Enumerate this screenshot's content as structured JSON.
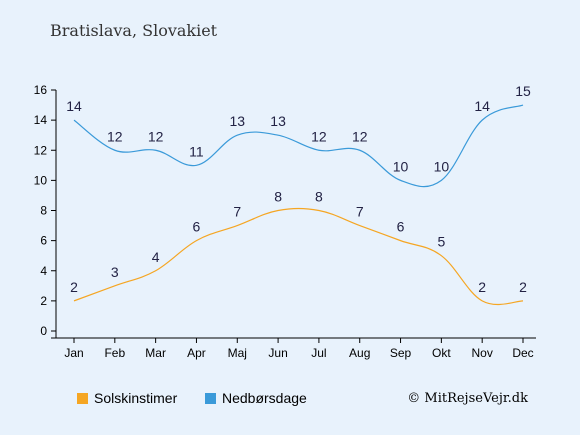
{
  "title": "Bratislava, Slovakiet",
  "copyright": "© MitRejseVejr.dk",
  "colors": {
    "background": "#e8f2fc",
    "sun": "#f5a623",
    "rain": "#3a9ad9"
  },
  "chart_data": {
    "type": "line",
    "categories": [
      "Jan",
      "Feb",
      "Mar",
      "Apr",
      "Maj",
      "Jun",
      "Jul",
      "Aug",
      "Sep",
      "Okt",
      "Nov",
      "Dec"
    ],
    "ylim": [
      0,
      16
    ],
    "yticks": [
      "0",
      "2",
      "4",
      "6",
      "8",
      "10",
      "12",
      "14",
      "16"
    ],
    "grid": false,
    "legend_position": "bottom-left",
    "series": [
      {
        "name": "Solskinstimer",
        "color": "#f5a623",
        "values": [
          2,
          3,
          4,
          6,
          7,
          8,
          8,
          7,
          6,
          5,
          2,
          2
        ]
      },
      {
        "name": "Nedbørsdage",
        "color": "#3a9ad9",
        "values": [
          14,
          12,
          12,
          11,
          13,
          13,
          12,
          12,
          10,
          10,
          14,
          15
        ]
      }
    ]
  }
}
